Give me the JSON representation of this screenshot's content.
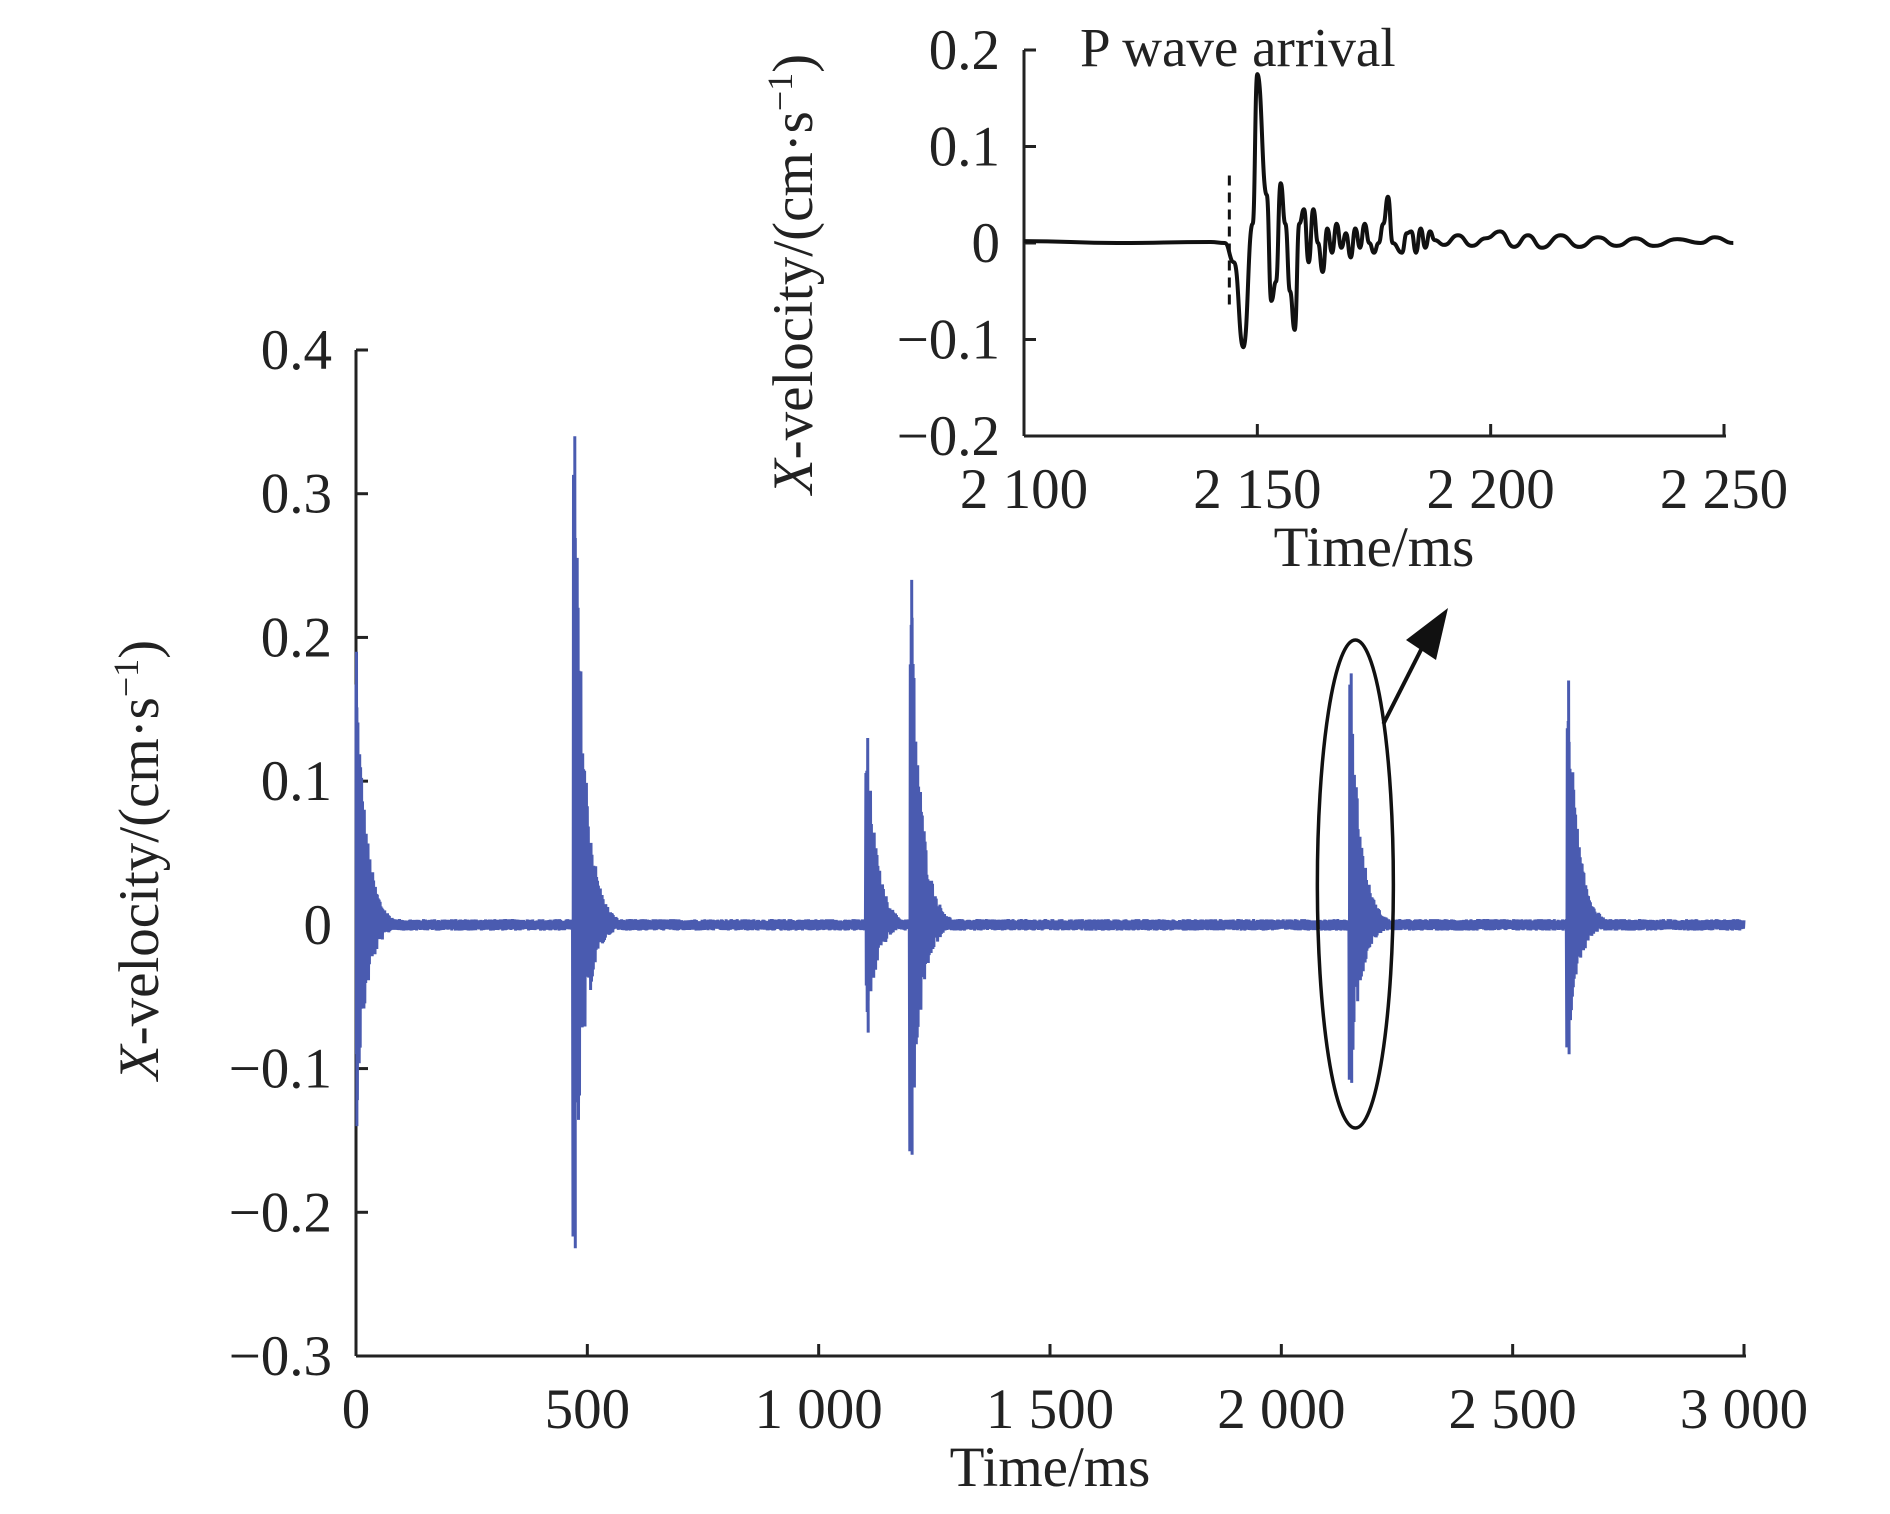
{
  "chart_data": [
    {
      "type": "line",
      "xlabel": "Time/ms",
      "ylabel": {
        "italic": "X",
        "text": "-velocity/(cm·s",
        "sup": "−1",
        "close": ")"
      },
      "xlim": [
        0,
        3000
      ],
      "ylim": [
        -0.3,
        0.4
      ],
      "xticks": [
        0,
        500,
        1000,
        1500,
        2000,
        2500,
        3000
      ],
      "xtick_labels": [
        "0",
        "500",
        "1 000",
        "1 500",
        "2 000",
        "2 500",
        "3 000"
      ],
      "yticks": [
        -0.3,
        -0.2,
        -0.1,
        0,
        0.1,
        0.2,
        0.3,
        0.4
      ],
      "ytick_labels": [
        "−0.3",
        "−0.2",
        "−0.1",
        "0",
        "0.1",
        "0.2",
        "0.3",
        "0.4"
      ],
      "grid": false,
      "series": [
        {
          "color": "#4a5bb0",
          "bursts": [
            {
              "t": 0,
              "max": 0.19,
              "min": -0.14
            },
            {
              "t": 472,
              "max": 0.34,
              "min": -0.225
            },
            {
              "t": 1105,
              "max": 0.13,
              "min": -0.075
            },
            {
              "t": 1200,
              "max": 0.24,
              "min": -0.16
            },
            {
              "t": 2150,
              "max": 0.175,
              "min": -0.11
            },
            {
              "t": 2620,
              "max": 0.17,
              "min": -0.09
            }
          ]
        }
      ],
      "annotation": {
        "type": "ellipse",
        "center_time": 2160,
        "arrow_to": "inset"
      }
    },
    {
      "type": "line",
      "xlabel": "Time/ms",
      "ylabel": {
        "italic": "X",
        "text": "-velocity/(cm·s",
        "sup": "−1",
        "close": ")"
      },
      "title": "P wave arrival",
      "xlim": [
        2100,
        2250
      ],
      "ylim": [
        -0.2,
        0.2
      ],
      "xticks": [
        2100,
        2150,
        2200,
        2250
      ],
      "xtick_labels": [
        "2 100",
        "2 150",
        "2 200",
        "2 250"
      ],
      "yticks": [
        -0.2,
        -0.1,
        0,
        0.1,
        0.2
      ],
      "ytick_labels": [
        "−0.2",
        "−0.1",
        "0",
        "0.1",
        "0.2"
      ],
      "grid": false,
      "p_wave_arrival_ms": 2144,
      "series": [
        {
          "color": "#111111",
          "x": [
            2100,
            2120,
            2140,
            2143,
            2145,
            2147,
            2149,
            2150,
            2152,
            2153,
            2154,
            2155,
            2156,
            2157,
            2158,
            2159,
            2160,
            2161,
            2162,
            2163,
            2164,
            2165,
            2166,
            2167,
            2168,
            2169,
            2170,
            2171,
            2172,
            2173,
            2174,
            2175,
            2176,
            2177,
            2178,
            2179,
            2181,
            2182,
            2183,
            2184,
            2185,
            2186,
            2187,
            2188,
            2190,
            2193,
            2196,
            2199,
            2202,
            2205,
            2208,
            2211,
            2215,
            2219,
            2223,
            2227,
            2231,
            2235,
            2240,
            2245,
            2248,
            2252
          ],
          "y": [
            0.002,
            0.0,
            0.001,
            0.0,
            -0.02,
            -0.108,
            0.02,
            0.175,
            0.05,
            -0.06,
            -0.04,
            0.062,
            0.02,
            -0.05,
            -0.09,
            0.02,
            0.035,
            -0.02,
            0.035,
            0.0,
            -0.03,
            0.015,
            -0.01,
            0.02,
            -0.005,
            0.01,
            -0.015,
            0.015,
            -0.005,
            0.02,
            0.0,
            -0.01,
            0.0,
            0.02,
            0.048,
            0.0,
            -0.01,
            0.01,
            0.012,
            -0.01,
            0.015,
            -0.005,
            0.012,
            0.003,
            -0.002,
            0.008,
            -0.003,
            0.005,
            0.012,
            -0.004,
            0.008,
            -0.005,
            0.008,
            -0.004,
            0.006,
            -0.003,
            0.005,
            -0.003,
            0.004,
            0.0,
            0.006,
            0.0
          ]
        }
      ]
    }
  ]
}
